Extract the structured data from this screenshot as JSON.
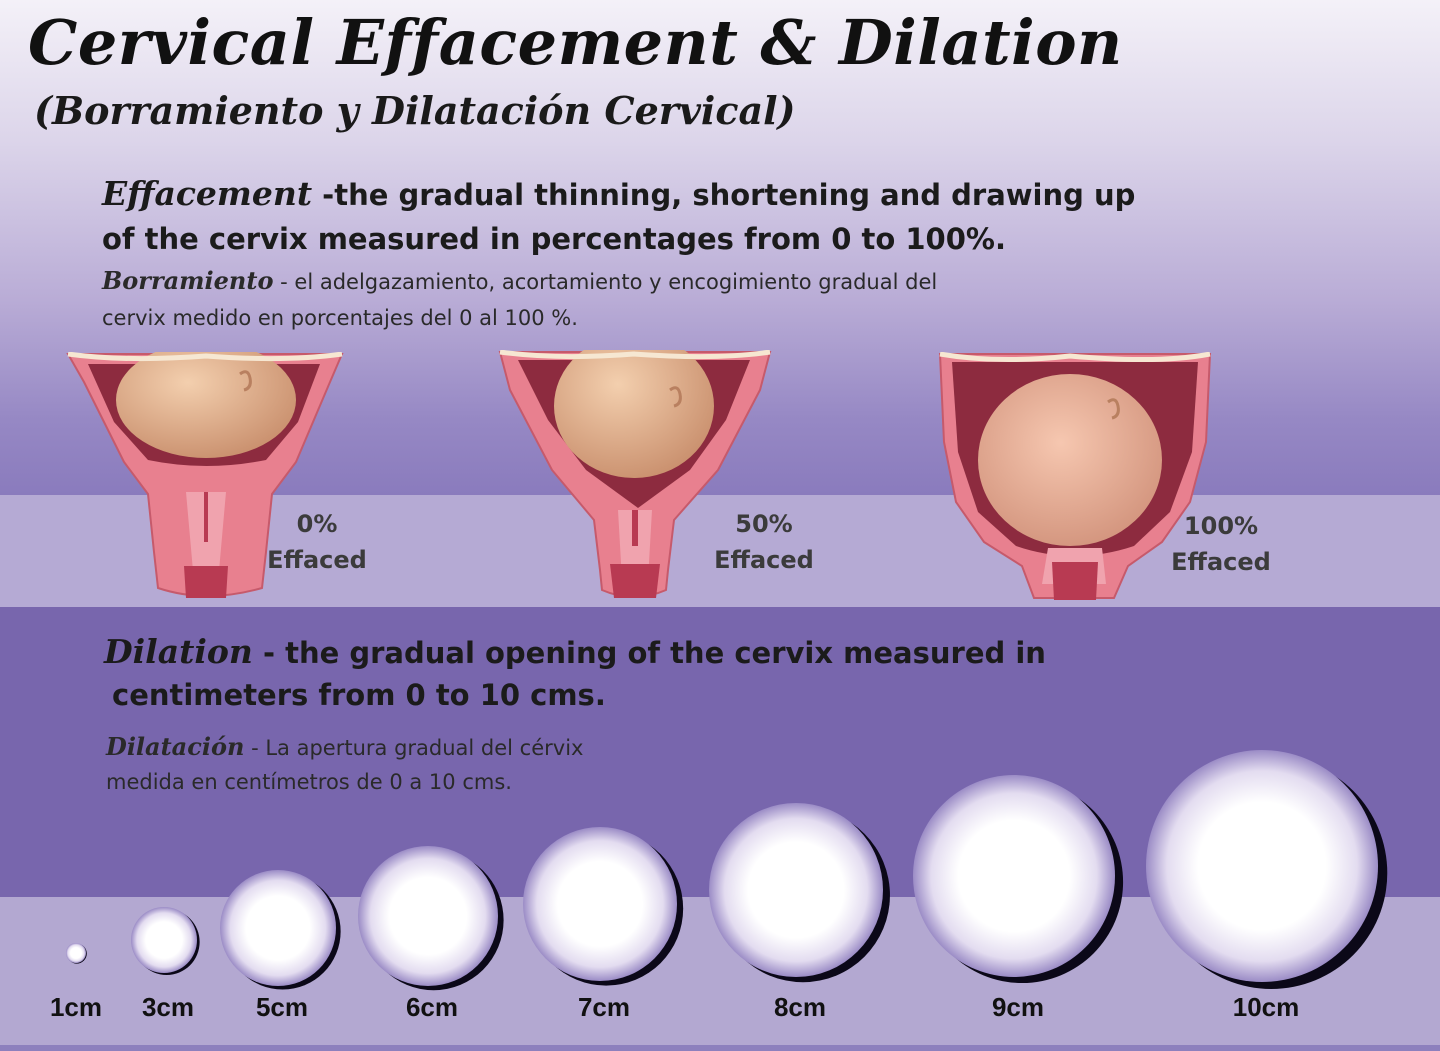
{
  "title": "Cervical Effacement & Dilation",
  "subtitle": "(Borramiento y Dilatación Cervical)",
  "effacement": {
    "term": "Effacement",
    "line1_rest": " -the gradual thinning, shortening and drawing up",
    "line2": "of the cervix measured in percentages from 0 to 100%.",
    "es_term": "Borramiento",
    "es_line1_rest": " - el adelgazamiento, acortamiento y encogimiento gradual del",
    "es_line2": "cervix medido en porcentajes del 0 al 100 %."
  },
  "stages": [
    {
      "pct": "0%",
      "label": "Effaced"
    },
    {
      "pct": "50%",
      "label": "Effaced"
    },
    {
      "pct": "100%",
      "label": "Effaced"
    }
  ],
  "dilation": {
    "term": "Dilation",
    "line1_rest": " - the gradual opening of the cervix measured in",
    "line2": "centimeters from 0 to 10 cms.",
    "es_term": "Dilatación",
    "es_line1_rest": "  -  La apertura gradual del cérvix",
    "es_line2": "medida en centímetros de 0 a 10 cms."
  },
  "circles": [
    {
      "label": "1cm",
      "value_cm": 1
    },
    {
      "label": "3cm",
      "value_cm": 3
    },
    {
      "label": "5cm",
      "value_cm": 5
    },
    {
      "label": "6cm",
      "value_cm": 6
    },
    {
      "label": "7cm",
      "value_cm": 7
    },
    {
      "label": "8cm",
      "value_cm": 8
    },
    {
      "label": "9cm",
      "value_cm": 9
    },
    {
      "label": "10cm",
      "value_cm": 10
    }
  ],
  "colors": {
    "tissue": "#e8808f",
    "tissue_dark": "#b83a52",
    "head": "#e7b08f",
    "band_dark": "#7866ad",
    "band_light": "#b5aad4"
  }
}
